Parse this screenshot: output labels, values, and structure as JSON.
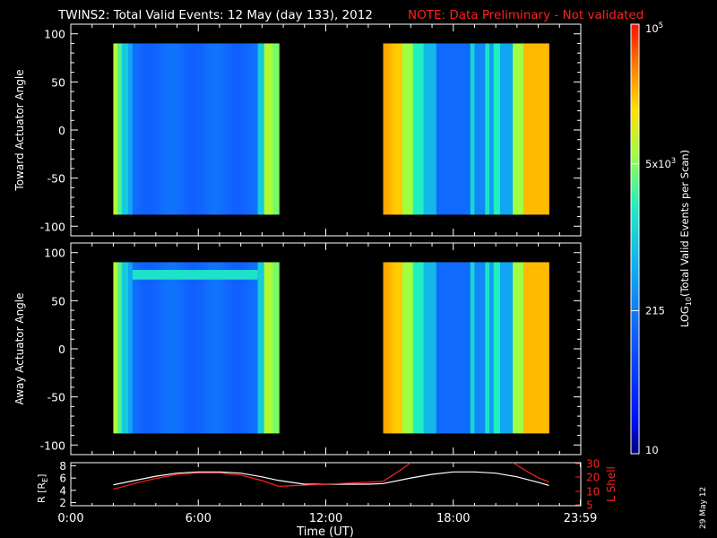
{
  "header": {
    "title": "TWINS2: Total Valid Events: 12 May (day 133), 2012",
    "note": "NOTE: Data Preliminary - Not validated"
  },
  "footer": {
    "date_stamp": "29 May 12"
  },
  "colors": {
    "background": "#000000",
    "axis": "#ffffff",
    "note": "#ff2020",
    "r_line": "#ffffff",
    "l_line": "#ff2020"
  },
  "chart_data": [
    {
      "type": "heatmap",
      "name": "toward",
      "ylabel": "Toward Actuator Angle",
      "ylim": [
        -110,
        110
      ],
      "yticks": [
        "100",
        "50",
        "0",
        "-50",
        "-100"
      ],
      "ytick_values": [
        100,
        50,
        0,
        -50,
        -100
      ],
      "xlim": [
        0,
        24
      ],
      "x_minor_ticks_hours": [
        0,
        1,
        2,
        3,
        4,
        5,
        6,
        7,
        8,
        9,
        10,
        11,
        12,
        13,
        14,
        15,
        16,
        17,
        18,
        19,
        20,
        21,
        22,
        23,
        24
      ],
      "y_data_range": [
        -88,
        90
      ],
      "data_intervals_hours": [
        [
          2.0,
          9.8
        ],
        [
          14.7,
          22.5
        ]
      ],
      "color_scale": "log10"
    },
    {
      "type": "heatmap",
      "name": "away",
      "ylabel": "Away Actuator Angle",
      "ylim": [
        -110,
        110
      ],
      "yticks": [
        "100",
        "50",
        "0",
        "-50",
        "-100"
      ],
      "ytick_values": [
        100,
        50,
        0,
        -50,
        -100
      ],
      "xlim": [
        0,
        24
      ],
      "y_data_range": [
        -88,
        90
      ],
      "data_intervals_hours": [
        [
          2.0,
          9.8
        ],
        [
          14.7,
          22.5
        ]
      ],
      "color_scale": "log10",
      "band_feature_angle": [
        82,
        72
      ]
    },
    {
      "type": "line",
      "name": "orbit",
      "ylabel": "R [R",
      "ylabel_sub": "E",
      "ylabel_end": "]",
      "y2label": "L Shell",
      "xlabel": "Time (UT)",
      "xticks": [
        "0:00",
        "6:00",
        "12:00",
        "18:00",
        "23:59"
      ],
      "xtick_values": [
        0,
        6,
        12,
        18,
        23.98
      ],
      "xlim": [
        0,
        24
      ],
      "ylim": [
        1.5,
        8.5
      ],
      "yticks": [
        "8",
        "6",
        "4",
        "2"
      ],
      "ytick_values": [
        8,
        6,
        4,
        2
      ],
      "y2lim": [
        5,
        30
      ],
      "y2ticks": [
        "30",
        "20",
        "10",
        "5"
      ],
      "y2tick_values": [
        30,
        20,
        10,
        5
      ],
      "series": [
        {
          "axis": "left",
          "x": [
            2.0,
            3.0,
            4.0,
            5.0,
            6.0,
            7.0,
            8.0,
            9.0,
            9.8,
            11.0,
            12.0,
            13.0,
            14.0,
            14.7,
            16.0,
            17.0,
            18.0,
            19.0,
            20.0,
            21.0,
            22.0,
            22.5
          ],
          "values": [
            4.9,
            5.6,
            6.3,
            6.8,
            7.0,
            7.0,
            6.8,
            6.2,
            5.6,
            5.0,
            5.0,
            5.0,
            5.0,
            5.1,
            6.0,
            6.6,
            7.0,
            7.0,
            6.8,
            6.2,
            5.3,
            4.8
          ]
        },
        {
          "axis": "right",
          "x": [
            2.0,
            3.0,
            4.0,
            5.0,
            6.0,
            7.0,
            8.0,
            9.0,
            9.8,
            11.0,
            12.0,
            13.0,
            14.0,
            14.7,
            15.5,
            16.0
          ],
          "values": [
            11.5,
            15.5,
            19.0,
            22.0,
            23.0,
            23.0,
            21.5,
            17.5,
            13.5,
            14.3,
            15.0,
            15.7,
            16.3,
            17.0,
            25.0,
            32.0
          ]
        },
        {
          "axis": "right",
          "x": [
            20.8,
            21.5,
            22.0,
            22.5
          ],
          "values": [
            31.5,
            24.0,
            19.5,
            16.5
          ]
        }
      ]
    }
  ],
  "colorbar": {
    "label_pre": "LOG",
    "label_sub": "10",
    "label_post": "(Total Valid Events per Scan)",
    "ticks": [
      {
        "base": "10",
        "exp": "5",
        "value": 100000
      },
      {
        "base": "5x10",
        "exp": "3",
        "value": 5000
      },
      {
        "base": "215",
        "exp": "",
        "value": 215
      },
      {
        "base": "10",
        "exp": "",
        "value": 10
      }
    ],
    "min": 10,
    "max": 100000
  }
}
